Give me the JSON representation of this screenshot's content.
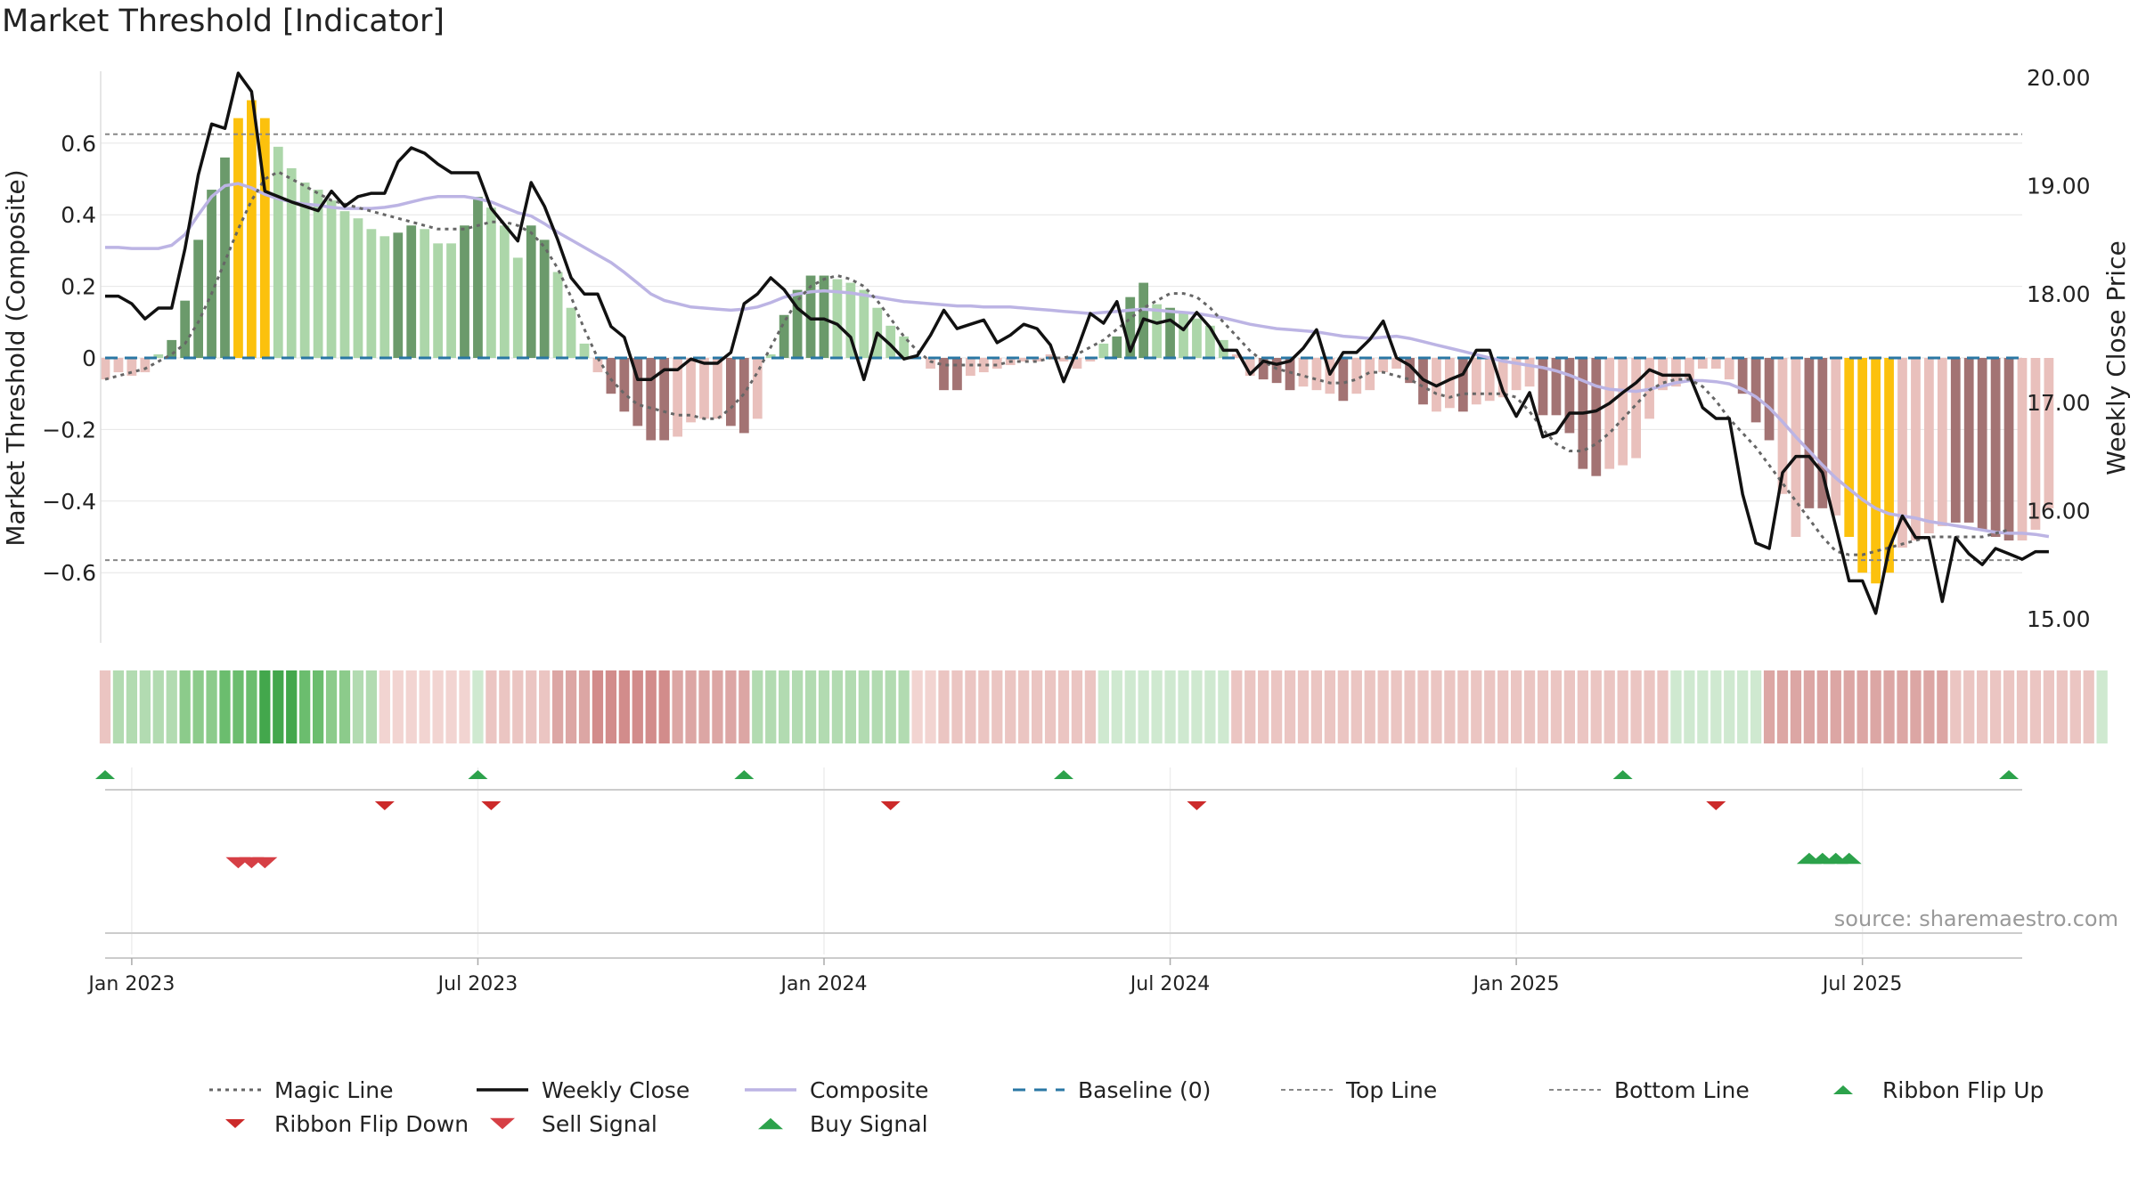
{
  "title": "Market Threshold [Indicator]",
  "source": "source: sharemaestro.com",
  "colors": {
    "bull_strong": "#6b9a6b",
    "bull_light": "#acd6a9",
    "bear_strong": "#a37373",
    "bear_light": "#e9c0bc",
    "extreme": "#fcc10d",
    "composite": "#bcb4e4",
    "weekly_close": "#111111",
    "magic_line": "#666666",
    "baseline": "#2a77a4",
    "thresholds": "#888888",
    "buy": "#2ca24b",
    "sell": "#d63f45",
    "flip_down": "#cc2a2a",
    "ribbon_up": "#2ca24b",
    "source_text": "#999999"
  },
  "chart_data": {
    "type": "bar",
    "ylabel_left": "Market Threshold (Composite)",
    "ylabel_right": "Weekly Close Price",
    "left_ticks": [
      "0.6",
      "0.4",
      "0.2",
      "0",
      "−0.2",
      "−0.4",
      "−0.6"
    ],
    "left_tick_values": [
      0.6,
      0.4,
      0.2,
      0,
      -0.2,
      -0.4,
      -0.6
    ],
    "right_ticks": [
      "20.00",
      "19.00",
      "18.00",
      "17.00",
      "16.00",
      "15.00"
    ],
    "right_tick_values": [
      20,
      19,
      18,
      17,
      16,
      15
    ],
    "ylim_left": [
      -0.8,
      0.8
    ],
    "ylim_right": [
      14.8,
      20.2
    ],
    "x_ticks": [
      {
        "label": "Jan 2023",
        "week": 2
      },
      {
        "label": "Jul 2023",
        "week": 28
      },
      {
        "label": "Jan 2024",
        "week": 54
      },
      {
        "label": "Jul 2024",
        "week": 80
      },
      {
        "label": "Jan 2025",
        "week": 106
      },
      {
        "label": "Jul 2025",
        "week": 132
      }
    ],
    "top_line": 0.625,
    "bottom_line": -0.565,
    "baseline": 0,
    "weeks": 145,
    "composite": [
      -0.06,
      -0.04,
      -0.05,
      -0.04,
      0.01,
      0.05,
      0.16,
      0.33,
      0.47,
      0.56,
      0.67,
      0.72,
      0.67,
      0.59,
      0.53,
      0.49,
      0.47,
      0.44,
      0.41,
      0.39,
      0.36,
      0.34,
      0.35,
      0.37,
      0.36,
      0.32,
      0.32,
      0.37,
      0.45,
      0.42,
      0.37,
      0.28,
      0.37,
      0.33,
      0.24,
      0.14,
      0.04,
      -0.04,
      -0.1,
      -0.15,
      -0.19,
      -0.23,
      -0.23,
      -0.22,
      -0.18,
      -0.17,
      -0.17,
      -0.19,
      -0.21,
      -0.17,
      0.01,
      0.12,
      0.19,
      0.23,
      0.23,
      0.22,
      0.21,
      0.19,
      0.14,
      0.09,
      0.06,
      0,
      -0.03,
      -0.09,
      -0.09,
      -0.05,
      -0.04,
      -0.03,
      -0.02,
      -0.01,
      -0.01,
      0.01,
      -0.01,
      -0.03,
      -0.01,
      0.04,
      0.06,
      0.17,
      0.21,
      0.15,
      0.14,
      0.13,
      0.11,
      0.09,
      0.05,
      0.01,
      -0.05,
      -0.06,
      -0.07,
      -0.09,
      -0.08,
      -0.09,
      -0.1,
      -0.12,
      -0.1,
      -0.09,
      -0.04,
      -0.03,
      -0.07,
      -0.13,
      -0.15,
      -0.14,
      -0.15,
      -0.13,
      -0.12,
      -0.11,
      -0.09,
      -0.08,
      -0.16,
      -0.16,
      -0.21,
      -0.31,
      -0.33,
      -0.31,
      -0.3,
      -0.28,
      -0.17,
      -0.09,
      -0.08,
      -0.06,
      -0.03,
      -0.03,
      -0.06,
      -0.1,
      -0.18,
      -0.23,
      -0.38,
      -0.5,
      -0.42,
      -0.42,
      -0.44,
      -0.5,
      -0.6,
      -0.63,
      -0.6,
      -0.53,
      -0.51,
      -0.49,
      -0.47,
      -0.46,
      -0.46,
      -0.48,
      -0.5,
      -0.51,
      -0.51,
      -0.48,
      -0.42
    ],
    "bar_style": [
      "bl",
      "bl",
      "bl",
      "bl",
      "gl",
      "gs",
      "gs",
      "gs",
      "gs",
      "gs",
      "y",
      "y",
      "y",
      "gl",
      "gl",
      "gl",
      "gl",
      "gl",
      "gl",
      "gl",
      "gl",
      "gl",
      "gs",
      "gs",
      "gl",
      "gl",
      "gl",
      "gs",
      "gs",
      "gl",
      "gl",
      "gl",
      "gs",
      "gs",
      "gl",
      "gl",
      "gl",
      "bl",
      "bs",
      "bs",
      "bs",
      "bs",
      "bs",
      "bl",
      "bl",
      "bl",
      "bl",
      "bs",
      "bs",
      "bl",
      "gl",
      "gs",
      "gs",
      "gs",
      "gs",
      "gl",
      "gl",
      "gl",
      "gl",
      "gl",
      "gl",
      "bl",
      "bl",
      "bs",
      "bs",
      "bl",
      "bl",
      "bl",
      "bl",
      "bl",
      "bl",
      "bl",
      "bl",
      "bl",
      "bl",
      "gl",
      "gs",
      "gs",
      "gs",
      "gl",
      "gs",
      "gl",
      "gl",
      "gl",
      "gl",
      "bl",
      "bl",
      "bs",
      "bs",
      "bs",
      "bl",
      "bl",
      "bl",
      "bs",
      "bl",
      "bl",
      "bl",
      "bl",
      "bs",
      "bs",
      "bl",
      "bl",
      "bs",
      "bl",
      "bl",
      "bl",
      "bl",
      "bl",
      "bs",
      "bs",
      "bs",
      "bs",
      "bs",
      "bl",
      "bl",
      "bl",
      "bl",
      "bl",
      "bl",
      "bl",
      "bl",
      "bl",
      "bl",
      "bs",
      "bs",
      "bs",
      "bl",
      "bl",
      "bs",
      "bs",
      "bl",
      "y",
      "y",
      "y",
      "y",
      "bl",
      "bl",
      "bl",
      "bl",
      "bs",
      "bs",
      "bs",
      "bs",
      "bs",
      "bl",
      "bl",
      "bl",
      "bl"
    ],
    "magic_line": [
      -0.06,
      -0.05,
      -0.04,
      -0.03,
      -0.01,
      0.01,
      0.04,
      0.1,
      0.18,
      0.27,
      0.36,
      0.44,
      0.5,
      0.52,
      0.5,
      0.48,
      0.46,
      0.44,
      0.43,
      0.42,
      0.41,
      0.4,
      0.39,
      0.38,
      0.37,
      0.36,
      0.36,
      0.36,
      0.37,
      0.38,
      0.38,
      0.37,
      0.35,
      0.31,
      0.25,
      0.17,
      0.08,
      0,
      -0.06,
      -0.1,
      -0.13,
      -0.14,
      -0.15,
      -0.16,
      -0.16,
      -0.17,
      -0.17,
      -0.14,
      -0.1,
      -0.04,
      0.03,
      0.1,
      0.16,
      0.2,
      0.22,
      0.23,
      0.22,
      0.2,
      0.16,
      0.11,
      0.06,
      0.02,
      -0.01,
      -0.02,
      -0.02,
      -0.02,
      -0.02,
      -0.02,
      -0.01,
      -0.01,
      -0.01,
      0,
      0,
      0.01,
      0.03,
      0.05,
      0.08,
      0.11,
      0.14,
      0.16,
      0.18,
      0.18,
      0.17,
      0.14,
      0.1,
      0.06,
      0.02,
      -0.01,
      -0.03,
      -0.04,
      -0.05,
      -0.06,
      -0.07,
      -0.07,
      -0.06,
      -0.04,
      -0.04,
      -0.05,
      -0.06,
      -0.08,
      -0.1,
      -0.11,
      -0.1,
      -0.1,
      -0.1,
      -0.1,
      -0.11,
      -0.15,
      -0.2,
      -0.24,
      -0.26,
      -0.26,
      -0.24,
      -0.21,
      -0.17,
      -0.13,
      -0.09,
      -0.07,
      -0.06,
      -0.06,
      -0.08,
      -0.12,
      -0.17,
      -0.21,
      -0.25,
      -0.3,
      -0.35,
      -0.4,
      -0.45,
      -0.5,
      -0.54,
      -0.55,
      -0.55,
      -0.54,
      -0.53,
      -0.52,
      -0.51,
      -0.5,
      -0.5,
      -0.5,
      -0.5,
      -0.5,
      -0.49,
      -0.48
    ],
    "composite_line": [
      18.43,
      18.43,
      18.42,
      18.42,
      18.42,
      18.45,
      18.55,
      18.73,
      18.9,
      19.0,
      19.02,
      18.98,
      18.92,
      18.88,
      18.85,
      18.83,
      18.82,
      18.8,
      18.79,
      18.79,
      18.79,
      18.8,
      18.82,
      18.85,
      18.88,
      18.9,
      18.9,
      18.9,
      18.88,
      18.85,
      18.8,
      18.75,
      18.72,
      18.65,
      18.57,
      18.5,
      18.43,
      18.36,
      18.29,
      18.2,
      18.1,
      18.0,
      17.94,
      17.91,
      17.88,
      17.87,
      17.86,
      17.85,
      17.86,
      17.88,
      17.92,
      17.97,
      18.0,
      18.02,
      18.03,
      18.02,
      18.01,
      17.99,
      17.97,
      17.95,
      17.93,
      17.92,
      17.91,
      17.9,
      17.89,
      17.89,
      17.88,
      17.88,
      17.88,
      17.87,
      17.86,
      17.85,
      17.84,
      17.83,
      17.82,
      17.83,
      17.84,
      17.85,
      17.86,
      17.85,
      17.84,
      17.83,
      17.82,
      17.8,
      17.78,
      17.75,
      17.72,
      17.7,
      17.68,
      17.67,
      17.66,
      17.65,
      17.63,
      17.61,
      17.6,
      17.59,
      17.6,
      17.61,
      17.59,
      17.56,
      17.53,
      17.5,
      17.47,
      17.44,
      17.41,
      17.38,
      17.36,
      17.34,
      17.32,
      17.29,
      17.25,
      17.2,
      17.15,
      17.12,
      17.11,
      17.1,
      17.12,
      17.15,
      17.18,
      17.2,
      17.2,
      17.19,
      17.17,
      17.12,
      17.05,
      16.95,
      16.82,
      16.68,
      16.55,
      16.42,
      16.3,
      16.2,
      16.1,
      16.02,
      15.97,
      15.95,
      15.93,
      15.9,
      15.88,
      15.86,
      15.84,
      15.82,
      15.8,
      15.79,
      15.79,
      15.78,
      15.76
    ],
    "weekly_close": [
      17.98,
      17.98,
      17.91,
      17.77,
      17.87,
      17.87,
      18.42,
      19.1,
      19.57,
      19.53,
      20.04,
      19.87,
      18.95,
      18.9,
      18.85,
      18.81,
      18.77,
      18.95,
      18.81,
      18.9,
      18.93,
      18.93,
      19.22,
      19.35,
      19.3,
      19.2,
      19.12,
      19.12,
      19.12,
      18.79,
      18.64,
      18.49,
      19.03,
      18.81,
      18.5,
      18.15,
      18.0,
      18.0,
      17.7,
      17.6,
      17.21,
      17.21,
      17.3,
      17.3,
      17.4,
      17.36,
      17.36,
      17.46,
      17.91,
      18.0,
      18.15,
      18.04,
      17.87,
      17.77,
      17.77,
      17.72,
      17.6,
      17.21,
      17.64,
      17.53,
      17.4,
      17.43,
      17.62,
      17.85,
      17.68,
      17.72,
      17.76,
      17.55,
      17.62,
      17.72,
      17.68,
      17.53,
      17.19,
      17.48,
      17.82,
      17.73,
      17.93,
      17.47,
      17.77,
      17.73,
      17.76,
      17.67,
      17.83,
      17.69,
      17.48,
      17.48,
      17.26,
      17.38,
      17.35,
      17.38,
      17.5,
      17.67,
      17.26,
      17.46,
      17.46,
      17.58,
      17.75,
      17.41,
      17.34,
      17.21,
      17.15,
      17.21,
      17.26,
      17.48,
      17.48,
      17.1,
      16.87,
      17.09,
      16.68,
      16.72,
      16.9,
      16.9,
      16.92,
      16.99,
      17.09,
      17.18,
      17.3,
      17.25,
      17.25,
      17.25,
      16.95,
      16.85,
      16.85,
      16.15,
      15.7,
      15.65,
      16.35,
      16.5,
      16.5,
      16.35,
      15.85,
      15.35,
      15.35,
      15.05,
      15.65,
      15.95,
      15.75,
      15.75,
      15.16,
      15.75,
      15.6,
      15.5,
      15.65,
      15.6,
      15.55,
      15.62,
      15.62
    ],
    "ribbon_style": [
      "r2",
      "g2",
      "g2",
      "g2",
      "g2",
      "g2",
      "g3",
      "g3",
      "g3",
      "g4",
      "g4",
      "g4",
      "g5",
      "g5",
      "g5",
      "g4",
      "g4",
      "g3",
      "g3",
      "g2",
      "g2",
      "r1",
      "r1",
      "r1",
      "r1",
      "r1",
      "r1",
      "r1",
      "g1",
      "r2",
      "r2",
      "r2",
      "r2",
      "r2",
      "r3",
      "r3",
      "r3",
      "r4",
      "r4",
      "r4",
      "r4",
      "r4",
      "r4",
      "r3",
      "r3",
      "r3",
      "r3",
      "r3",
      "r3",
      "g2",
      "g2",
      "g2",
      "g2",
      "g2",
      "g2",
      "g2",
      "g2",
      "g2",
      "g2",
      "g2",
      "g2",
      "r1",
      "r1",
      "r2",
      "r2",
      "r2",
      "r2",
      "r2",
      "r2",
      "r2",
      "r2",
      "r2",
      "r2",
      "r2",
      "r2",
      "g1",
      "g1",
      "g1",
      "g1",
      "g1",
      "g1",
      "g1",
      "g1",
      "g1",
      "g1",
      "r2",
      "r2",
      "r2",
      "r2",
      "r2",
      "r2",
      "r2",
      "r2",
      "r2",
      "r2",
      "r2",
      "r2",
      "r2",
      "r2",
      "r2",
      "r2",
      "r2",
      "r2",
      "r2",
      "r2",
      "r2",
      "r2",
      "r2",
      "r2",
      "r2",
      "r2",
      "r2",
      "r2",
      "r2",
      "r2",
      "r2",
      "r2",
      "r2",
      "g1",
      "g1",
      "g1",
      "g1",
      "g1",
      "g1",
      "g1",
      "r3",
      "r3",
      "r3",
      "r3",
      "r3",
      "r3",
      "r3",
      "r3",
      "r3",
      "r3",
      "r3",
      "r3",
      "r3",
      "r3",
      "r2",
      "r2",
      "r2",
      "r2",
      "r2",
      "r2",
      "r2",
      "r2",
      "r2",
      "r2",
      "r2",
      "g1"
    ],
    "ribbon_flip_up_weeks": [
      0,
      28,
      48,
      72,
      114,
      143
    ],
    "ribbon_flip_down_weeks": [
      21,
      29,
      59,
      82,
      121
    ],
    "sell_signal_weeks": [
      10,
      11,
      12
    ],
    "buy_signal_weeks": [
      128,
      129,
      130,
      131
    ]
  },
  "legend": [
    {
      "label": "Magic Line",
      "kind": "dotted",
      "color": "#666666"
    },
    {
      "label": "Weekly Close",
      "kind": "solid",
      "color": "#111111"
    },
    {
      "label": "Composite",
      "kind": "solid",
      "color": "#bcb4e4"
    },
    {
      "label": "Baseline (0)",
      "kind": "dashed",
      "color": "#2a77a4"
    },
    {
      "label": "Top Line",
      "kind": "dashed-thin",
      "color": "#888888"
    },
    {
      "label": "Bottom Line",
      "kind": "dashed-thin",
      "color": "#888888"
    },
    {
      "label": "Ribbon Flip Up",
      "kind": "tri-up",
      "color": "#2ca24b"
    },
    {
      "label": "Ribbon Flip Down",
      "kind": "tri-down",
      "color": "#cc2a2a"
    },
    {
      "label": "Sell Signal",
      "kind": "tri-down-big",
      "color": "#d63f45"
    },
    {
      "label": "Buy Signal",
      "kind": "tri-up-big",
      "color": "#2ca24b"
    }
  ]
}
